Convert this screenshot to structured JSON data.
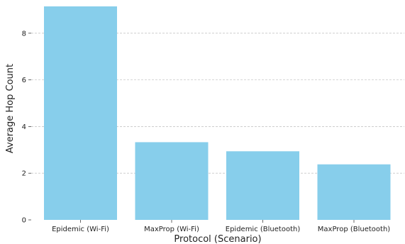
{
  "chart_data": {
    "type": "bar",
    "title": "",
    "xlabel": "Protocol (Scenario)",
    "ylabel": "Average Hop Count",
    "categories": [
      "Epidemic (Wi-Fi)",
      "MaxProp (Wi-Fi)",
      "Epidemic (Bluetooth)",
      "MaxProp (Bluetooth)"
    ],
    "values": [
      9.15,
      3.33,
      2.94,
      2.38
    ],
    "ylim": [
      0,
      9.15
    ],
    "yticks": [
      0,
      2,
      4,
      6,
      8
    ],
    "grid": true,
    "legend": "none",
    "bar_color": "#87ceeb"
  }
}
